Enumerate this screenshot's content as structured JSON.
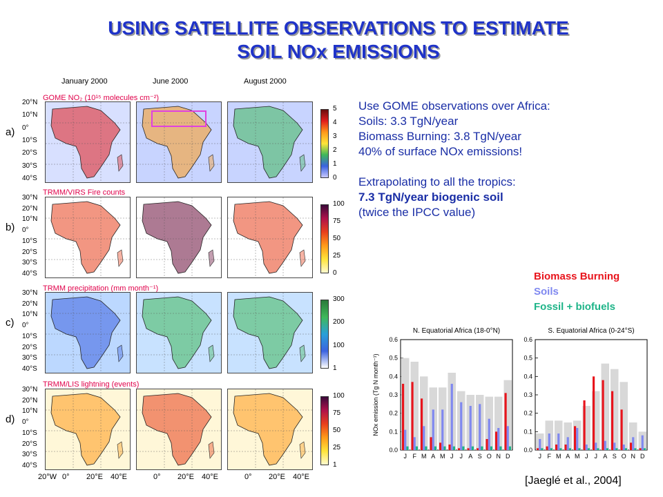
{
  "title": {
    "line1": "USING SATELLITE OBSERVATIONS TO ESTIMATE",
    "line2": "SOIL NOx EMISSIONS"
  },
  "maps": {
    "columns": [
      "January 2000",
      "June 2000",
      "August 2000"
    ],
    "rows": [
      {
        "label": "a)",
        "title": "GOME NO₂ (10¹⁵ molecules cm⁻²)",
        "colorbar_ticks": [
          "5",
          "4",
          "3",
          "2",
          "1",
          "0"
        ]
      },
      {
        "label": "b)",
        "title": "TRMM/VIRS Fire counts",
        "colorbar_ticks": [
          "100",
          "75",
          "50",
          "25",
          "0"
        ]
      },
      {
        "label": "c)",
        "title": "TRMM precipitation (mm month⁻¹)",
        "colorbar_ticks": [
          "300",
          "200",
          "100",
          "1"
        ]
      },
      {
        "label": "d)",
        "title": "TRMM/LIS lightning (events)",
        "colorbar_ticks": [
          "100",
          "75",
          "50",
          "25",
          "1"
        ]
      }
    ],
    "lat_labels_a": [
      "20°N",
      "10°N",
      "0°",
      "10°S",
      "20°S",
      "30°S",
      "40°S"
    ],
    "lat_labels": [
      "30°N",
      "20°N",
      "10°N",
      "0°",
      "10°S",
      "20°S",
      "30°S",
      "40°S"
    ],
    "lon_labels": [
      "20°W",
      "0°",
      "20°E",
      "40°E"
    ]
  },
  "text": {
    "line1": "Use GOME observations over Africa:",
    "line2": "Soils: 3.3 TgN/year",
    "line3": "Biomass Burning: 3.8  TgN/year",
    "line4": "40% of surface NOx emissions!",
    "arrow": "",
    "line5": "Extrapolating to all the tropics:",
    "line6": "7.3 TgN/year biogenic soil",
    "line7": "(twice the IPCC value)"
  },
  "legend": {
    "biomass": "Biomass Burning",
    "soils": "Soils",
    "fossil": "Fossil + biofuels"
  },
  "colors": {
    "biomass": "#e8141c",
    "soils": "#7f88f0",
    "fossil": "#1eb488",
    "total": "#d8d8d8",
    "title": "#1f33c9",
    "text": "#1a2ea6",
    "maptitle": "#e0004a"
  },
  "chart_data": [
    {
      "type": "bar",
      "title": "N. Equatorial Africa (18-0°N)",
      "ylabel": "NOx emission (Tg N month⁻¹)",
      "ylim": [
        0,
        0.6
      ],
      "yticks": [
        "0.0",
        "0.1",
        "0.2",
        "0.3",
        "0.4",
        "0.5",
        "0.6"
      ],
      "categories": [
        "J",
        "F",
        "M",
        "A",
        "M",
        "J",
        "J",
        "A",
        "S",
        "O",
        "N",
        "D"
      ],
      "series": [
        {
          "name": "Total",
          "values": [
            0.5,
            0.48,
            0.4,
            0.34,
            0.34,
            0.42,
            0.32,
            0.3,
            0.3,
            0.29,
            0.29,
            0.38
          ]
        },
        {
          "name": "Biomass Burning",
          "values": [
            0.36,
            0.37,
            0.28,
            0.07,
            0.04,
            0.03,
            0.01,
            0.01,
            0.01,
            0.06,
            0.1,
            0.31
          ]
        },
        {
          "name": "Soils",
          "values": [
            0.11,
            0.07,
            0.13,
            0.22,
            0.22,
            0.36,
            0.26,
            0.24,
            0.25,
            0.17,
            0.12,
            0.13
          ]
        },
        {
          "name": "Fossil + biofuels",
          "values": [
            0.02,
            0.02,
            0.02,
            0.02,
            0.02,
            0.02,
            0.02,
            0.02,
            0.02,
            0.02,
            0.02,
            0.02
          ]
        }
      ]
    },
    {
      "type": "bar",
      "title": "S. Equatorial Africa (0-24°S)",
      "ylim": [
        0,
        0.6
      ],
      "yticks": [
        "0.0",
        "0.1",
        "0.2",
        "0.3",
        "0.4",
        "0.5",
        "0.6"
      ],
      "categories": [
        "J",
        "F",
        "M",
        "A",
        "M",
        "J",
        "J",
        "A",
        "S",
        "O",
        "N",
        "D"
      ],
      "series": [
        {
          "name": "Total",
          "values": [
            0.09,
            0.16,
            0.16,
            0.15,
            0.16,
            0.24,
            0.32,
            0.47,
            0.44,
            0.37,
            0.15,
            0.1
          ]
        },
        {
          "name": "Biomass Burning",
          "values": [
            0.01,
            0.02,
            0.03,
            0.03,
            0.13,
            0.27,
            0.4,
            0.38,
            0.32,
            0.22,
            0.04,
            0.01
          ]
        },
        {
          "name": "Soils",
          "values": [
            0.06,
            0.09,
            0.09,
            0.07,
            0.12,
            0.03,
            0.04,
            0.05,
            0.04,
            0.03,
            0.07,
            0.08
          ]
        },
        {
          "name": "Fossil + biofuels",
          "values": [
            0.01,
            0.01,
            0.01,
            0.01,
            0.01,
            0.01,
            0.01,
            0.01,
            0.01,
            0.01,
            0.01,
            0.01
          ]
        }
      ]
    }
  ],
  "citation": "[Jaeglé et al., 2004]"
}
